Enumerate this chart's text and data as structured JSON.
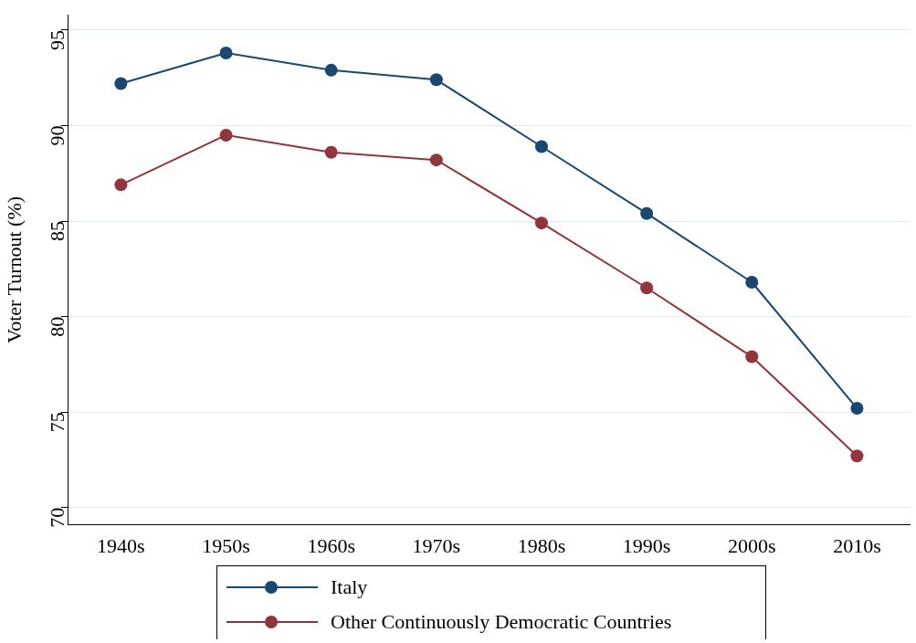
{
  "chart_data": {
    "type": "line",
    "ylabel": "Voter Turnout (%)",
    "categories": [
      "1940s",
      "1950s",
      "1960s",
      "1970s",
      "1980s",
      "1990s",
      "2000s",
      "2010s"
    ],
    "series": [
      {
        "name": "Italy",
        "color": "#1a476f",
        "values": [
          92.2,
          93.8,
          92.9,
          92.4,
          88.9,
          85.4,
          81.8,
          75.2
        ]
      },
      {
        "name": "Other Continuously Democratic Countries",
        "color": "#90353b",
        "values": [
          86.9,
          89.5,
          88.6,
          88.2,
          84.9,
          81.5,
          77.9,
          72.7
        ]
      }
    ],
    "ylim": [
      69.1,
      95.8
    ],
    "yticks": [
      70,
      75,
      80,
      85,
      90,
      95
    ],
    "grid": "y",
    "legend": "bottom",
    "marker": "circle",
    "line_style": "solid"
  }
}
